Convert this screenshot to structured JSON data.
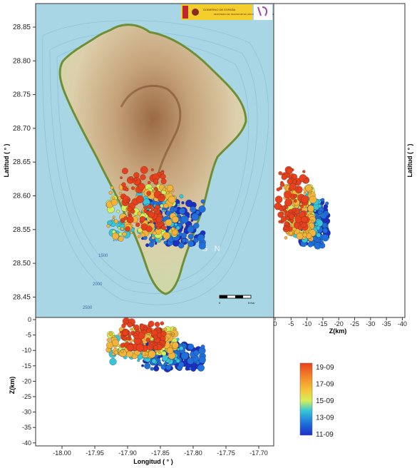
{
  "main_map": {
    "ylabel": "Latitud ( ° )",
    "yticks": [
      "28.85",
      "28.80",
      "28.75",
      "28.70",
      "28.65",
      "28.60",
      "28.55",
      "28.50",
      "28.45"
    ],
    "depth_contours": [
      "1000",
      "1500",
      "2000",
      "2500"
    ],
    "watermark": "G N",
    "scalebar_labels": [
      "0",
      "5 Km"
    ],
    "logo_text": [
      "GOBIERNO DE ESPAÑA",
      "MINISTERIO DE TRANSPORTES, MOVILIDAD Y AGENDA URBANA"
    ]
  },
  "side_panel": {
    "ylabel": "Latitud ( ° )",
    "xlabel": "Z(km)",
    "xticks": [
      "0",
      "-5",
      "-10",
      "-15",
      "-20",
      "-25",
      "-30",
      "-35",
      "-40"
    ]
  },
  "bottom_panel": {
    "ylabel": "Z(km)",
    "xlabel": "Longitud ( ° )",
    "yticks": [
      "0",
      "-5",
      "-10",
      "-15",
      "-20",
      "-25",
      "-30",
      "-35",
      "-40"
    ],
    "xticks": [
      "-18.00",
      "-17.95",
      "-17.90",
      "-17.85",
      "-17.80",
      "-17.75",
      "-17.70"
    ]
  },
  "legend": {
    "labels": [
      "19-09",
      "17-09",
      "15-09",
      "13-09",
      "11-09"
    ],
    "colors": [
      "#e8401c",
      "#f4b33a",
      "#d4ef5a",
      "#36c6d8",
      "#1f6fdc",
      "#1a2fc8"
    ]
  },
  "colors": {
    "sea": "#a9d6e5",
    "land": "#d8cba6",
    "coast": "#7a9a3a",
    "recent": "#e8401c",
    "oldest": "#1a2fc8"
  }
}
